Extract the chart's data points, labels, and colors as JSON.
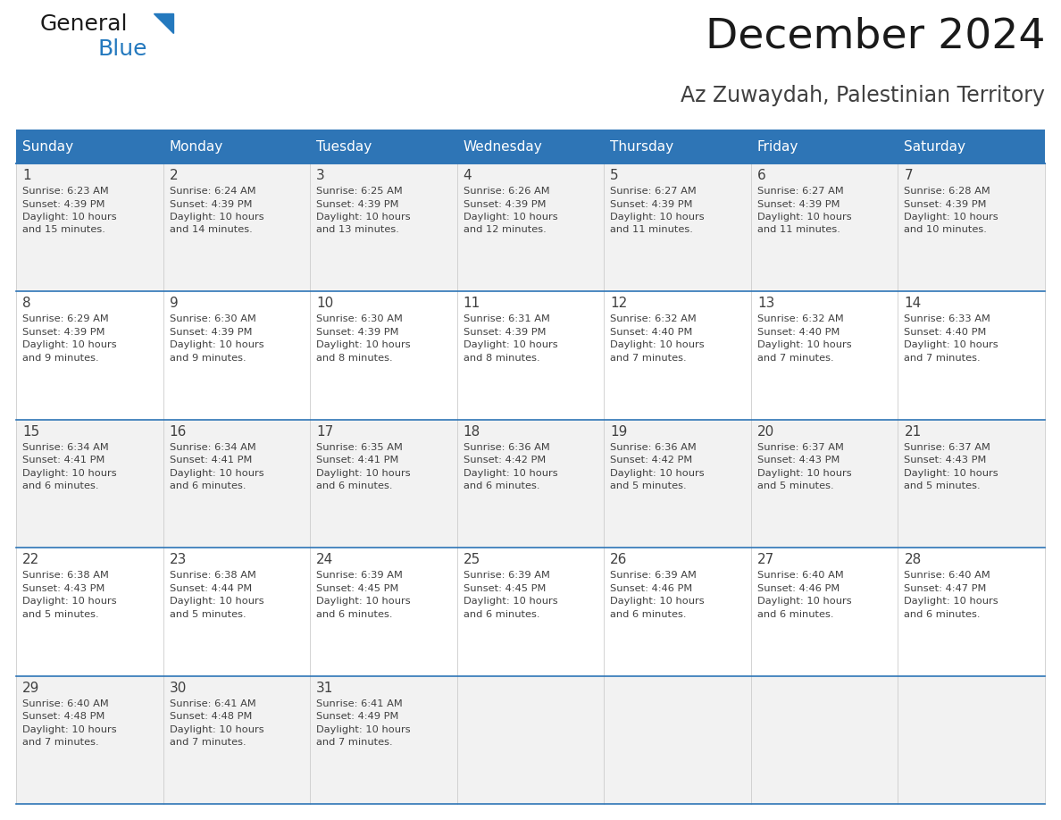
{
  "title": "December 2024",
  "subtitle": "Az Zuwaydah, Palestinian Territory",
  "header_bg": "#2E75B6",
  "header_text_color": "#FFFFFF",
  "day_names": [
    "Sunday",
    "Monday",
    "Tuesday",
    "Wednesday",
    "Thursday",
    "Friday",
    "Saturday"
  ],
  "cell_bg_odd": "#F2F2F2",
  "cell_bg_even": "#FFFFFF",
  "grid_line_color": "#2E75B6",
  "title_color": "#1a1a1a",
  "subtitle_color": "#404040",
  "day_num_color": "#404040",
  "cell_text_color": "#404040",
  "logo_general_color": "#1a1a1a",
  "logo_blue_color": "#2479BE",
  "calendar_data": [
    [
      {
        "day": 1,
        "sunrise": "6:23 AM",
        "sunset": "4:39 PM",
        "daylight_extra": "15 minutes."
      },
      {
        "day": 2,
        "sunrise": "6:24 AM",
        "sunset": "4:39 PM",
        "daylight_extra": "14 minutes."
      },
      {
        "day": 3,
        "sunrise": "6:25 AM",
        "sunset": "4:39 PM",
        "daylight_extra": "13 minutes."
      },
      {
        "day": 4,
        "sunrise": "6:26 AM",
        "sunset": "4:39 PM",
        "daylight_extra": "12 minutes."
      },
      {
        "day": 5,
        "sunrise": "6:27 AM",
        "sunset": "4:39 PM",
        "daylight_extra": "11 minutes."
      },
      {
        "day": 6,
        "sunrise": "6:27 AM",
        "sunset": "4:39 PM",
        "daylight_extra": "11 minutes."
      },
      {
        "day": 7,
        "sunrise": "6:28 AM",
        "sunset": "4:39 PM",
        "daylight_extra": "10 minutes."
      }
    ],
    [
      {
        "day": 8,
        "sunrise": "6:29 AM",
        "sunset": "4:39 PM",
        "daylight_extra": "9 minutes."
      },
      {
        "day": 9,
        "sunrise": "6:30 AM",
        "sunset": "4:39 PM",
        "daylight_extra": "9 minutes."
      },
      {
        "day": 10,
        "sunrise": "6:30 AM",
        "sunset": "4:39 PM",
        "daylight_extra": "8 minutes."
      },
      {
        "day": 11,
        "sunrise": "6:31 AM",
        "sunset": "4:39 PM",
        "daylight_extra": "8 minutes."
      },
      {
        "day": 12,
        "sunrise": "6:32 AM",
        "sunset": "4:40 PM",
        "daylight_extra": "7 minutes."
      },
      {
        "day": 13,
        "sunrise": "6:32 AM",
        "sunset": "4:40 PM",
        "daylight_extra": "7 minutes."
      },
      {
        "day": 14,
        "sunrise": "6:33 AM",
        "sunset": "4:40 PM",
        "daylight_extra": "7 minutes."
      }
    ],
    [
      {
        "day": 15,
        "sunrise": "6:34 AM",
        "sunset": "4:41 PM",
        "daylight_extra": "6 minutes."
      },
      {
        "day": 16,
        "sunrise": "6:34 AM",
        "sunset": "4:41 PM",
        "daylight_extra": "6 minutes."
      },
      {
        "day": 17,
        "sunrise": "6:35 AM",
        "sunset": "4:41 PM",
        "daylight_extra": "6 minutes."
      },
      {
        "day": 18,
        "sunrise": "6:36 AM",
        "sunset": "4:42 PM",
        "daylight_extra": "6 minutes."
      },
      {
        "day": 19,
        "sunrise": "6:36 AM",
        "sunset": "4:42 PM",
        "daylight_extra": "5 minutes."
      },
      {
        "day": 20,
        "sunrise": "6:37 AM",
        "sunset": "4:43 PM",
        "daylight_extra": "5 minutes."
      },
      {
        "day": 21,
        "sunrise": "6:37 AM",
        "sunset": "4:43 PM",
        "daylight_extra": "5 minutes."
      }
    ],
    [
      {
        "day": 22,
        "sunrise": "6:38 AM",
        "sunset": "4:43 PM",
        "daylight_extra": "5 minutes."
      },
      {
        "day": 23,
        "sunrise": "6:38 AM",
        "sunset": "4:44 PM",
        "daylight_extra": "5 minutes."
      },
      {
        "day": 24,
        "sunrise": "6:39 AM",
        "sunset": "4:45 PM",
        "daylight_extra": "6 minutes."
      },
      {
        "day": 25,
        "sunrise": "6:39 AM",
        "sunset": "4:45 PM",
        "daylight_extra": "6 minutes."
      },
      {
        "day": 26,
        "sunrise": "6:39 AM",
        "sunset": "4:46 PM",
        "daylight_extra": "6 minutes."
      },
      {
        "day": 27,
        "sunrise": "6:40 AM",
        "sunset": "4:46 PM",
        "daylight_extra": "6 minutes."
      },
      {
        "day": 28,
        "sunrise": "6:40 AM",
        "sunset": "4:47 PM",
        "daylight_extra": "6 minutes."
      }
    ],
    [
      {
        "day": 29,
        "sunrise": "6:40 AM",
        "sunset": "4:48 PM",
        "daylight_extra": "7 minutes."
      },
      {
        "day": 30,
        "sunrise": "6:41 AM",
        "sunset": "4:48 PM",
        "daylight_extra": "7 minutes."
      },
      {
        "day": 31,
        "sunrise": "6:41 AM",
        "sunset": "4:49 PM",
        "daylight_extra": "7 minutes."
      },
      null,
      null,
      null,
      null
    ]
  ],
  "fig_width": 11.88,
  "fig_height": 9.18,
  "dpi": 100
}
